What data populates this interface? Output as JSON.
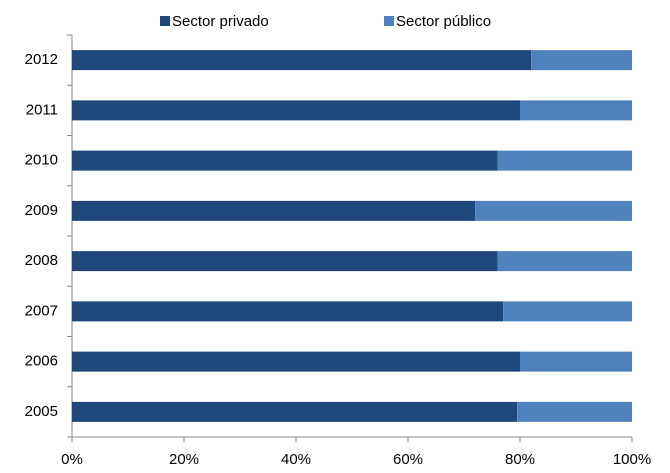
{
  "chart_data": {
    "type": "stacked-bar-horizontal",
    "categories": [
      "2005",
      "2006",
      "2007",
      "2008",
      "2009",
      "2010",
      "2011",
      "2012"
    ],
    "series": [
      {
        "name": "Sector privado",
        "color": "#1f497d",
        "values": [
          79.5,
          80,
          77,
          76,
          72,
          76,
          80,
          82
        ]
      },
      {
        "name": "Sector público",
        "color": "#4f81bd",
        "values": [
          20.5,
          20,
          23,
          24,
          28,
          24,
          20,
          18
        ]
      }
    ],
    "xlim": [
      0,
      100
    ],
    "xticks": [
      {
        "value": 0,
        "label": "0%"
      },
      {
        "value": 20,
        "label": "20%"
      },
      {
        "value": 40,
        "label": "40%"
      },
      {
        "value": 60,
        "label": "60%"
      },
      {
        "value": 80,
        "label": "80%"
      },
      {
        "value": 100,
        "label": "100%"
      }
    ]
  }
}
